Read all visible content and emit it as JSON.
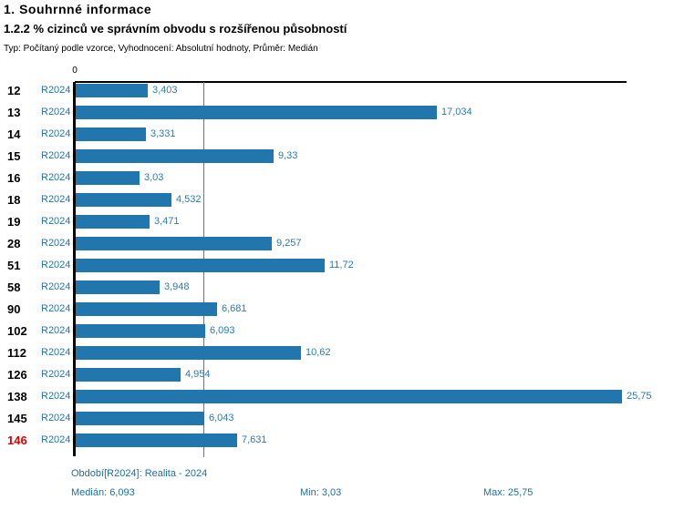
{
  "header": {
    "title": "1. Souhrnné informace",
    "subtitle": "1.2.2 % cizinců ve správním obvodu s rozšířenou působností",
    "meta": "Typ: Počítaný podle vzorce, Vyhodnocení: Absolutní hodnoty, Průměr: Medián"
  },
  "colors": {
    "bar_blue": "#2176ae",
    "label_blue": "#2b7cb3",
    "footer_blue": "#1d6fa5",
    "highlight_red": "#e00000",
    "axis_black": "#000000"
  },
  "chart_data": {
    "type": "bar",
    "orientation": "horizontal",
    "title": "1.2.2 % cizinců ve správním obvodu s rozšířenou působností",
    "series_label": "R2024",
    "categories": [
      "12",
      "13",
      "14",
      "15",
      "16",
      "18",
      "19",
      "28",
      "51",
      "58",
      "90",
      "102",
      "112",
      "126",
      "138",
      "145",
      "146"
    ],
    "values": [
      3.403,
      17.034,
      3.331,
      9.33,
      3.03,
      4.532,
      3.471,
      9.257,
      11.72,
      3.948,
      6.681,
      6.093,
      10.62,
      4.954,
      25.75,
      6.043,
      7.631
    ],
    "value_labels": [
      "3,403",
      "17,034",
      "3,331",
      "9,33",
      "3,03",
      "4,532",
      "3,471",
      "9,257",
      "11,72",
      "3,948",
      "6,681",
      "6,093",
      "10,62",
      "4,954",
      "25,75",
      "6,043",
      "7,631"
    ],
    "highlighted_category": "146",
    "axis_zero_label": "0",
    "xlim": [
      0,
      26
    ],
    "median_value": 6.093,
    "median_line": true,
    "grid": false,
    "legend_position": "none"
  },
  "footer": {
    "period": "Období[R2024]: Realita - 2024",
    "median": "Medián: 6,093",
    "min": "Min: 3,03",
    "max": "Max: 25,75"
  }
}
